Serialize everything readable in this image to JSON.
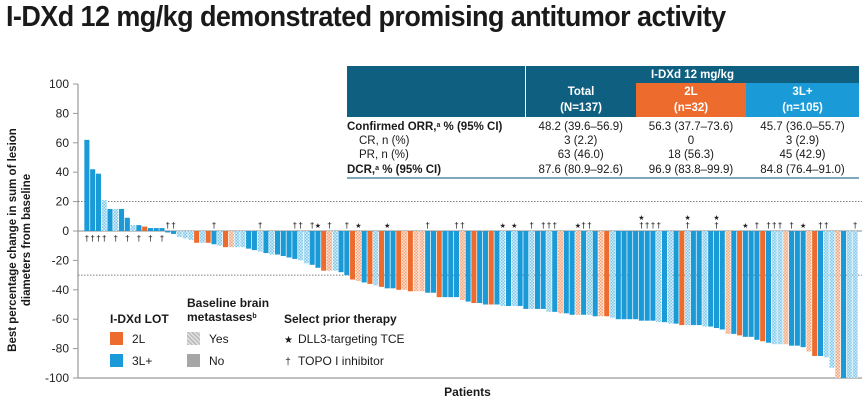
{
  "title": "I-DXd 12 mg/kg demonstrated promising antitumor activity",
  "table": {
    "group_header": "I-DXd 12 mg/kg",
    "columns": [
      {
        "label": "Total",
        "n": "(N=137)",
        "color": "#0f5f80"
      },
      {
        "label": "2L",
        "n": "(n=32)",
        "color": "#ec6b2d"
      },
      {
        "label": "3L+",
        "n": "(n=105)",
        "color": "#1a9ad6"
      }
    ],
    "rows": [
      {
        "label": "Confirmed ORR,",
        "sup": "a",
        "label_suffix": " % (95% CI)",
        "bold": true,
        "values": [
          "48.2 (39.6–56.9)",
          "56.3 (37.7–73.6)",
          "45.7 (36.0–55.7)"
        ]
      },
      {
        "label": "CR, n (%)",
        "sup": "",
        "label_suffix": "",
        "bold": false,
        "values": [
          "3 (2.2)",
          "0",
          "3 (2.9)"
        ]
      },
      {
        "label": "PR, n (%)",
        "sup": "",
        "label_suffix": "",
        "bold": false,
        "values": [
          "63 (46.0)",
          "18 (56.3)",
          "45 (42.9)"
        ]
      },
      {
        "label": "DCR,",
        "sup": "a",
        "label_suffix": " % (95% CI)",
        "bold": true,
        "values": [
          "87.6 (80.9–92.6)",
          "96.9 (83.8–99.9)",
          "84.8 (76.4–91.0)"
        ]
      }
    ]
  },
  "legend": {
    "lot_title": "I-DXd LOT",
    "lot_items": [
      {
        "label": "2L",
        "color": "#ec6b2d"
      },
      {
        "label": "3L+",
        "color": "#1a9ad6"
      }
    ],
    "brain_title_line1": "Baseline brain",
    "brain_title_line2": "metastases",
    "brain_title_sup": "b",
    "brain_items": [
      {
        "label": "Yes",
        "pattern": "hatched"
      },
      {
        "label": "No",
        "pattern": "solid"
      }
    ],
    "prior_title": "Select prior therapy",
    "prior_items": [
      {
        "symbol": "★",
        "label": "DLL3-targeting TCE"
      },
      {
        "symbol": "†",
        "label": "TOPO I inhibitor"
      }
    ]
  },
  "chart_data": {
    "type": "bar",
    "subtype": "waterfall",
    "title": "",
    "xlabel": "Patients",
    "ylabel": "Best percentage change in sum of lesion diameters from baseline",
    "ylim": [
      -100,
      100
    ],
    "yticks": [
      100,
      80,
      60,
      40,
      20,
      0,
      -20,
      -40,
      -60,
      -80,
      -100
    ],
    "reference_lines": [
      20,
      -30
    ],
    "grid": false,
    "legend_position": "bottom-left",
    "colors": {
      "2L": "#ec6b2d",
      "3L+": "#1a9ad6"
    },
    "series_note": "Each bar = one patient; lot = line of therapy; brain = baseline brain metastases (hatched if yes); marks: dagger = prior TOPO I inhibitor, star = prior DLL3-targeting TCE",
    "patients": [
      {
        "v": 62,
        "lot": "3L+",
        "brain": false,
        "marks": "†"
      },
      {
        "v": 42,
        "lot": "3L+",
        "brain": false,
        "marks": "†"
      },
      {
        "v": 39,
        "lot": "3L+",
        "brain": false,
        "marks": "†"
      },
      {
        "v": 21,
        "lot": "3L+",
        "brain": true,
        "marks": "†"
      },
      {
        "v": 15,
        "lot": "3L+",
        "brain": false,
        "marks": ""
      },
      {
        "v": 15,
        "lot": "3L+",
        "brain": true,
        "marks": "†"
      },
      {
        "v": 15,
        "lot": "3L+",
        "brain": false,
        "marks": ""
      },
      {
        "v": 9,
        "lot": "3L+",
        "brain": false,
        "marks": "†"
      },
      {
        "v": 4,
        "lot": "3L+",
        "brain": true,
        "marks": ""
      },
      {
        "v": 4,
        "lot": "3L+",
        "brain": false,
        "marks": "†"
      },
      {
        "v": 3,
        "lot": "2L",
        "brain": false,
        "marks": ""
      },
      {
        "v": 2,
        "lot": "3L+",
        "brain": false,
        "marks": "†"
      },
      {
        "v": 2,
        "lot": "3L+",
        "brain": false,
        "marks": ""
      },
      {
        "v": 2,
        "lot": "3L+",
        "brain": false,
        "marks": "†"
      },
      {
        "v": -1,
        "lot": "3L+",
        "brain": false,
        "marks": "†"
      },
      {
        "v": -2,
        "lot": "3L+",
        "brain": false,
        "marks": "†"
      },
      {
        "v": -4,
        "lot": "3L+",
        "brain": true,
        "marks": ""
      },
      {
        "v": -5,
        "lot": "3L+",
        "brain": true,
        "marks": ""
      },
      {
        "v": -6,
        "lot": "3L+",
        "brain": true,
        "marks": ""
      },
      {
        "v": -8,
        "lot": "2L",
        "brain": false,
        "marks": ""
      },
      {
        "v": -8,
        "lot": "3L+",
        "brain": true,
        "marks": ""
      },
      {
        "v": -8,
        "lot": "2L",
        "brain": false,
        "marks": ""
      },
      {
        "v": -9,
        "lot": "3L+",
        "brain": false,
        "marks": "†"
      },
      {
        "v": -10,
        "lot": "3L+",
        "brain": true,
        "marks": ""
      },
      {
        "v": -11,
        "lot": "2L",
        "brain": false,
        "marks": ""
      },
      {
        "v": -11,
        "lot": "2L",
        "brain": true,
        "marks": ""
      },
      {
        "v": -11,
        "lot": "3L+",
        "brain": true,
        "marks": ""
      },
      {
        "v": -11,
        "lot": "3L+",
        "brain": true,
        "marks": ""
      },
      {
        "v": -12,
        "lot": "3L+",
        "brain": false,
        "marks": ""
      },
      {
        "v": -13,
        "lot": "3L+",
        "brain": false,
        "marks": ""
      },
      {
        "v": -14,
        "lot": "3L+",
        "brain": true,
        "marks": "†"
      },
      {
        "v": -15,
        "lot": "3L+",
        "brain": false,
        "marks": ""
      },
      {
        "v": -16,
        "lot": "3L+",
        "brain": true,
        "marks": ""
      },
      {
        "v": -16,
        "lot": "3L+",
        "brain": false,
        "marks": ""
      },
      {
        "v": -17,
        "lot": "3L+",
        "brain": false,
        "marks": ""
      },
      {
        "v": -18,
        "lot": "3L+",
        "brain": false,
        "marks": ""
      },
      {
        "v": -19,
        "lot": "3L+",
        "brain": false,
        "marks": "†"
      },
      {
        "v": -20,
        "lot": "3L+",
        "brain": true,
        "marks": "†"
      },
      {
        "v": -22,
        "lot": "3L+",
        "brain": true,
        "marks": ""
      },
      {
        "v": -23,
        "lot": "3L+",
        "brain": false,
        "marks": "†"
      },
      {
        "v": -25,
        "lot": "3L+",
        "brain": false,
        "marks": "★"
      },
      {
        "v": -27,
        "lot": "2L",
        "brain": false,
        "marks": ""
      },
      {
        "v": -27,
        "lot": "2L",
        "brain": true,
        "marks": "†"
      },
      {
        "v": -27,
        "lot": "3L+",
        "brain": true,
        "marks": ""
      },
      {
        "v": -28,
        "lot": "3L+",
        "brain": false,
        "marks": ""
      },
      {
        "v": -30,
        "lot": "3L+",
        "brain": false,
        "marks": "†"
      },
      {
        "v": -33,
        "lot": "2L",
        "brain": false,
        "marks": ""
      },
      {
        "v": -34,
        "lot": "2L",
        "brain": true,
        "marks": "★"
      },
      {
        "v": -35,
        "lot": "3L+",
        "brain": false,
        "marks": ""
      },
      {
        "v": -36,
        "lot": "2L",
        "brain": false,
        "marks": ""
      },
      {
        "v": -37,
        "lot": "3L+",
        "brain": true,
        "marks": ""
      },
      {
        "v": -38,
        "lot": "2L",
        "brain": false,
        "marks": ""
      },
      {
        "v": -39,
        "lot": "3L+",
        "brain": false,
        "marks": "★"
      },
      {
        "v": -39,
        "lot": "3L+",
        "brain": false,
        "marks": ""
      },
      {
        "v": -40,
        "lot": "2L",
        "brain": false,
        "marks": ""
      },
      {
        "v": -40,
        "lot": "2L",
        "brain": true,
        "marks": ""
      },
      {
        "v": -41,
        "lot": "2L",
        "brain": false,
        "marks": ""
      },
      {
        "v": -41,
        "lot": "2L",
        "brain": true,
        "marks": ""
      },
      {
        "v": -41,
        "lot": "2L",
        "brain": true,
        "marks": ""
      },
      {
        "v": -42,
        "lot": "3L+",
        "brain": false,
        "marks": "†"
      },
      {
        "v": -42,
        "lot": "3L+",
        "brain": false,
        "marks": ""
      },
      {
        "v": -45,
        "lot": "2L",
        "brain": false,
        "marks": ""
      },
      {
        "v": -45,
        "lot": "3L+",
        "brain": false,
        "marks": ""
      },
      {
        "v": -45,
        "lot": "3L+",
        "brain": false,
        "marks": ""
      },
      {
        "v": -45,
        "lot": "3L+",
        "brain": false,
        "marks": "†"
      },
      {
        "v": -47,
        "lot": "2L",
        "brain": true,
        "marks": "†"
      },
      {
        "v": -48,
        "lot": "3L+",
        "brain": false,
        "marks": ""
      },
      {
        "v": -49,
        "lot": "2L",
        "brain": false,
        "marks": ""
      },
      {
        "v": -49,
        "lot": "3L+",
        "brain": false,
        "marks": ""
      },
      {
        "v": -50,
        "lot": "3L+",
        "brain": false,
        "marks": ""
      },
      {
        "v": -50,
        "lot": "2L",
        "brain": false,
        "marks": ""
      },
      {
        "v": -50,
        "lot": "3L+",
        "brain": false,
        "marks": ""
      },
      {
        "v": -51,
        "lot": "3L+",
        "brain": true,
        "marks": "★"
      },
      {
        "v": -51,
        "lot": "3L+",
        "brain": false,
        "marks": ""
      },
      {
        "v": -51,
        "lot": "3L+",
        "brain": true,
        "marks": "★"
      },
      {
        "v": -51,
        "lot": "3L+",
        "brain": false,
        "marks": ""
      },
      {
        "v": -53,
        "lot": "3L+",
        "brain": false,
        "marks": ""
      },
      {
        "v": -53,
        "lot": "3L+",
        "brain": true,
        "marks": "†"
      },
      {
        "v": -53,
        "lot": "3L+",
        "brain": false,
        "marks": ""
      },
      {
        "v": -53,
        "lot": "3L+",
        "brain": false,
        "marks": "†"
      },
      {
        "v": -55,
        "lot": "3L+",
        "brain": true,
        "marks": "†"
      },
      {
        "v": -55,
        "lot": "3L+",
        "brain": false,
        "marks": "†"
      },
      {
        "v": -56,
        "lot": "2L",
        "brain": true,
        "marks": ""
      },
      {
        "v": -56,
        "lot": "3L+",
        "brain": false,
        "marks": ""
      },
      {
        "v": -57,
        "lot": "3L+",
        "brain": false,
        "marks": ""
      },
      {
        "v": -57,
        "lot": "2L",
        "brain": true,
        "marks": "★"
      },
      {
        "v": -57,
        "lot": "3L+",
        "brain": false,
        "marks": "†"
      },
      {
        "v": -57,
        "lot": "3L+",
        "brain": true,
        "marks": "†"
      },
      {
        "v": -58,
        "lot": "3L+",
        "brain": false,
        "marks": ""
      },
      {
        "v": -58,
        "lot": "2L",
        "brain": true,
        "marks": ""
      },
      {
        "v": -58,
        "lot": "2L",
        "brain": false,
        "marks": ""
      },
      {
        "v": -59,
        "lot": "3L+",
        "brain": true,
        "marks": ""
      },
      {
        "v": -60,
        "lot": "3L+",
        "brain": false,
        "marks": ""
      },
      {
        "v": -60,
        "lot": "3L+",
        "brain": false,
        "marks": ""
      },
      {
        "v": -60,
        "lot": "3L+",
        "brain": false,
        "marks": ""
      },
      {
        "v": -60,
        "lot": "3L+",
        "brain": false,
        "marks": ""
      },
      {
        "v": -61,
        "lot": "3L+",
        "brain": false,
        "marks": "★†"
      },
      {
        "v": -61,
        "lot": "3L+",
        "brain": false,
        "marks": "†"
      },
      {
        "v": -61,
        "lot": "3L+",
        "brain": false,
        "marks": "†"
      },
      {
        "v": -62,
        "lot": "3L+",
        "brain": true,
        "marks": "†"
      },
      {
        "v": -62,
        "lot": "3L+",
        "brain": false,
        "marks": ""
      },
      {
        "v": -63,
        "lot": "3L+",
        "brain": true,
        "marks": ""
      },
      {
        "v": -63,
        "lot": "3L+",
        "brain": false,
        "marks": ""
      },
      {
        "v": -64,
        "lot": "2L",
        "brain": false,
        "marks": ""
      },
      {
        "v": -64,
        "lot": "3L+",
        "brain": true,
        "marks": "★†"
      },
      {
        "v": -64,
        "lot": "3L+",
        "brain": false,
        "marks": ""
      },
      {
        "v": -64,
        "lot": "3L+",
        "brain": false,
        "marks": ""
      },
      {
        "v": -65,
        "lot": "3L+",
        "brain": true,
        "marks": ""
      },
      {
        "v": -65,
        "lot": "3L+",
        "brain": false,
        "marks": ""
      },
      {
        "v": -66,
        "lot": "3L+",
        "brain": false,
        "marks": "★†"
      },
      {
        "v": -67,
        "lot": "3L+",
        "brain": false,
        "marks": ""
      },
      {
        "v": -70,
        "lot": "2L",
        "brain": true,
        "marks": ""
      },
      {
        "v": -70,
        "lot": "3L+",
        "brain": false,
        "marks": ""
      },
      {
        "v": -71,
        "lot": "2L",
        "brain": false,
        "marks": ""
      },
      {
        "v": -72,
        "lot": "3L+",
        "brain": false,
        "marks": "★"
      },
      {
        "v": -72,
        "lot": "3L+",
        "brain": false,
        "marks": ""
      },
      {
        "v": -74,
        "lot": "3L+",
        "brain": false,
        "marks": "†"
      },
      {
        "v": -75,
        "lot": "2L",
        "brain": false,
        "marks": ""
      },
      {
        "v": -76,
        "lot": "3L+",
        "brain": false,
        "marks": "†"
      },
      {
        "v": -77,
        "lot": "3L+",
        "brain": true,
        "marks": "†"
      },
      {
        "v": -77,
        "lot": "3L+",
        "brain": true,
        "marks": "†"
      },
      {
        "v": -77,
        "lot": "2L",
        "brain": true,
        "marks": ""
      },
      {
        "v": -78,
        "lot": "3L+",
        "brain": false,
        "marks": "†"
      },
      {
        "v": -78,
        "lot": "3L+",
        "brain": false,
        "marks": ""
      },
      {
        "v": -79,
        "lot": "3L+",
        "brain": false,
        "marks": "★"
      },
      {
        "v": -82,
        "lot": "2L",
        "brain": true,
        "marks": ""
      },
      {
        "v": -85,
        "lot": "2L",
        "brain": false,
        "marks": ""
      },
      {
        "v": -85,
        "lot": "3L+",
        "brain": false,
        "marks": "†"
      },
      {
        "v": -86,
        "lot": "3L+",
        "brain": true,
        "marks": "†"
      },
      {
        "v": -93,
        "lot": "3L+",
        "brain": true,
        "marks": ""
      },
      {
        "v": -100,
        "lot": "2L",
        "brain": true,
        "marks": ""
      },
      {
        "v": -100,
        "lot": "3L+",
        "brain": false,
        "marks": ""
      },
      {
        "v": -100,
        "lot": "3L+",
        "brain": true,
        "marks": ""
      },
      {
        "v": -100,
        "lot": "3L+",
        "brain": true,
        "marks": "†"
      }
    ]
  }
}
